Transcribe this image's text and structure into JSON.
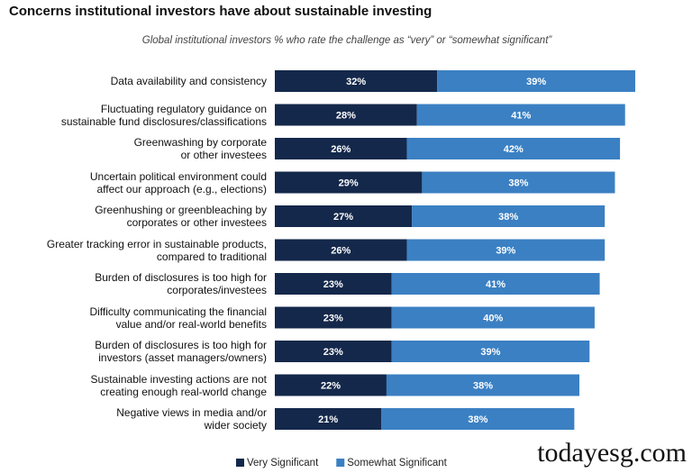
{
  "chart_data": {
    "type": "stacked-bar-horizontal",
    "title": "Concerns institutional investors have about sustainable investing",
    "subtitle": "Global institutional investors % who rate the challenge as “very” or “somewhat significant”",
    "categories": [
      "Data availability and consistency",
      "Fluctuating regulatory guidance on\nsustainable fund disclosures/classifications",
      "Greenwashing by corporate\nor other investees",
      "Uncertain political environment could\naffect our approach (e.g., elections)",
      "Greenhushing or greenbleaching by\ncorporates or other investees",
      "Greater tracking error in sustainable products,\ncompared to traditional",
      "Burden of disclosures is too high for\ncorporates/investees",
      "Difficulty communicating the financial\nvalue and/or real-world benefits",
      "Burden of disclosures is too high for\ninvestors (asset managers/owners)",
      "Sustainable investing actions are not\ncreating enough real-world change",
      "Negative views in media and/or\nwider society"
    ],
    "series": [
      {
        "name": "Very Significant",
        "color": "#14284b",
        "values": [
          32,
          28,
          26,
          29,
          27,
          26,
          23,
          23,
          23,
          22,
          21
        ],
        "value_labels": [
          "32%",
          "28%",
          "26%",
          "29%",
          "27%",
          "26%",
          "23%",
          "23%",
          "23%",
          "22%",
          "21%"
        ]
      },
      {
        "name": "Somewhat Significant",
        "color": "#3b80c3",
        "values": [
          39,
          41,
          42,
          38,
          38,
          39,
          41,
          40,
          39,
          38,
          38
        ],
        "value_labels": [
          "39%",
          "41%",
          "42%",
          "38%",
          "38%",
          "39%",
          "41%",
          "40%",
          "39%",
          "38%",
          "38%"
        ]
      }
    ],
    "watermark": "todayesg.com"
  }
}
